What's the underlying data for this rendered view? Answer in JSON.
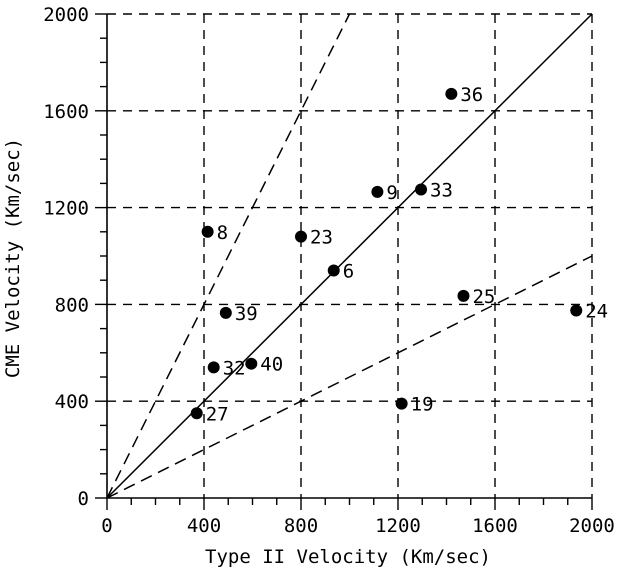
{
  "chart_data": {
    "type": "scatter",
    "xlabel": "Type II Velocity (Km/sec)",
    "ylabel": "CME Velocity (Km/sec)",
    "xlim": [
      0,
      2000
    ],
    "ylim": [
      0,
      2000
    ],
    "x_ticks": [
      0,
      400,
      800,
      1200,
      1600,
      2000
    ],
    "y_ticks": [
      0,
      400,
      800,
      1200,
      1600,
      2000
    ],
    "x_tick_labels": [
      "0",
      "400",
      "800",
      "1200",
      "1600",
      "2000"
    ],
    "y_tick_labels": [
      "0",
      "400",
      "800",
      "1200",
      "1600",
      "2000"
    ],
    "grid": true,
    "grid_style": "dashed",
    "points": [
      {
        "label": "36",
        "x": 1420,
        "y": 1670
      },
      {
        "label": "9",
        "x": 1115,
        "y": 1265
      },
      {
        "label": "33",
        "x": 1295,
        "y": 1275
      },
      {
        "label": "8",
        "x": 415,
        "y": 1100
      },
      {
        "label": "23",
        "x": 800,
        "y": 1080
      },
      {
        "label": "6",
        "x": 935,
        "y": 940
      },
      {
        "label": "25",
        "x": 1470,
        "y": 835
      },
      {
        "label": "24",
        "x": 1935,
        "y": 775
      },
      {
        "label": "39",
        "x": 490,
        "y": 765
      },
      {
        "label": "32",
        "x": 440,
        "y": 540
      },
      {
        "label": "40",
        "x": 595,
        "y": 555
      },
      {
        "label": "19",
        "x": 1215,
        "y": 390
      },
      {
        "label": "27",
        "x": 370,
        "y": 350
      }
    ],
    "reference_lines": [
      {
        "name": "y = 2x",
        "slope": 2,
        "style": "dashed"
      },
      {
        "name": "y = x",
        "slope": 1,
        "style": "solid"
      },
      {
        "name": "y = 0.5x",
        "slope": 0.5,
        "style": "dashed"
      }
    ],
    "colors": {
      "marker": "#000000",
      "line": "#000000",
      "grid": "#000000"
    }
  }
}
